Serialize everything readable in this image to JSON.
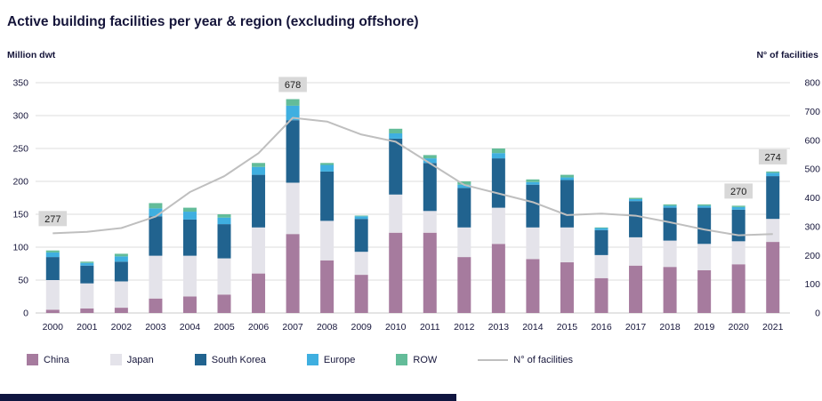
{
  "title": "Active building facilities per year & region (excluding offshore)",
  "left_axis_caption": "Million dwt",
  "right_axis_caption": "N° of facilities",
  "chart_data": {
    "type": "bar",
    "stacked": true,
    "categories": [
      "2000",
      "2001",
      "2002",
      "2003",
      "2004",
      "2005",
      "2006",
      "2007",
      "2008",
      "2009",
      "2010",
      "2011",
      "2012",
      "2013",
      "2014",
      "2015",
      "2016",
      "2017",
      "2018",
      "2019",
      "2020",
      "2021"
    ],
    "series": [
      {
        "name": "China",
        "color": "#A67B9E",
        "values": [
          5,
          7,
          8,
          22,
          25,
          28,
          60,
          120,
          80,
          58,
          122,
          122,
          85,
          105,
          82,
          77,
          53,
          72,
          70,
          65,
          74,
          108
        ]
      },
      {
        "name": "Japan",
        "color": "#E4E3EA",
        "values": [
          45,
          38,
          40,
          65,
          62,
          55,
          70,
          78,
          60,
          35,
          58,
          33,
          45,
          55,
          48,
          53,
          35,
          43,
          40,
          40,
          35,
          35
        ]
      },
      {
        "name": "South Korea",
        "color": "#21638F",
        "values": [
          35,
          27,
          30,
          60,
          55,
          52,
          80,
          95,
          75,
          50,
          85,
          73,
          60,
          75,
          65,
          72,
          38,
          55,
          50,
          55,
          48,
          65
        ]
      },
      {
        "name": "Europe",
        "color": "#3FAFE0",
        "values": [
          7,
          4,
          8,
          12,
          12,
          10,
          12,
          22,
          10,
          4,
          8,
          7,
          5,
          8,
          4,
          4,
          3,
          3,
          3,
          3,
          4,
          5
        ]
      },
      {
        "name": "ROW",
        "color": "#63BC99",
        "values": [
          3,
          2,
          4,
          8,
          6,
          5,
          6,
          10,
          3,
          1,
          7,
          5,
          5,
          7,
          4,
          4,
          1,
          2,
          2,
          2,
          2,
          2
        ]
      }
    ],
    "line_series": {
      "name": "N° of facilities",
      "color": "#BFBFBF",
      "axis": "right",
      "values": [
        277,
        282,
        295,
        335,
        420,
        475,
        555,
        678,
        665,
        620,
        595,
        520,
        445,
        415,
        385,
        340,
        345,
        338,
        315,
        290,
        270,
        274
      ]
    },
    "left_ylim": [
      0,
      350
    ],
    "right_ylim": [
      0,
      800
    ],
    "left_ticks": [
      0,
      50,
      100,
      150,
      200,
      250,
      300,
      350
    ],
    "right_ticks": [
      0,
      100,
      200,
      300,
      400,
      500,
      600,
      700,
      800
    ],
    "grid": true,
    "legend_position": "bottom",
    "xlabel": "",
    "ylabel_left": "Million dwt",
    "ylabel_right": "N° of facilities",
    "annotations": [
      {
        "category": "2000",
        "text": "277"
      },
      {
        "category": "2007",
        "text": "678"
      },
      {
        "category": "2020",
        "text": "270"
      },
      {
        "category": "2021",
        "text": "274"
      }
    ]
  },
  "legend": {
    "items": [
      {
        "label": "China",
        "color": "#A67B9E",
        "type": "swatch"
      },
      {
        "label": "Japan",
        "color": "#E4E3EA",
        "type": "swatch"
      },
      {
        "label": "South Korea",
        "color": "#21638F",
        "type": "swatch"
      },
      {
        "label": "Europe",
        "color": "#3FAFE0",
        "type": "swatch"
      },
      {
        "label": "ROW",
        "color": "#63BC99",
        "type": "swatch"
      },
      {
        "label": "N° of facilities",
        "color": "#BFBFBF",
        "type": "line"
      }
    ]
  },
  "colors": {
    "grid": "#DCDCDC",
    "baseline": "#C9C9C9",
    "axis_text": "#15153A",
    "annotation_bg": "#D8D8D8",
    "annotation_text": "#1A1A1A",
    "footer": "#101640"
  }
}
